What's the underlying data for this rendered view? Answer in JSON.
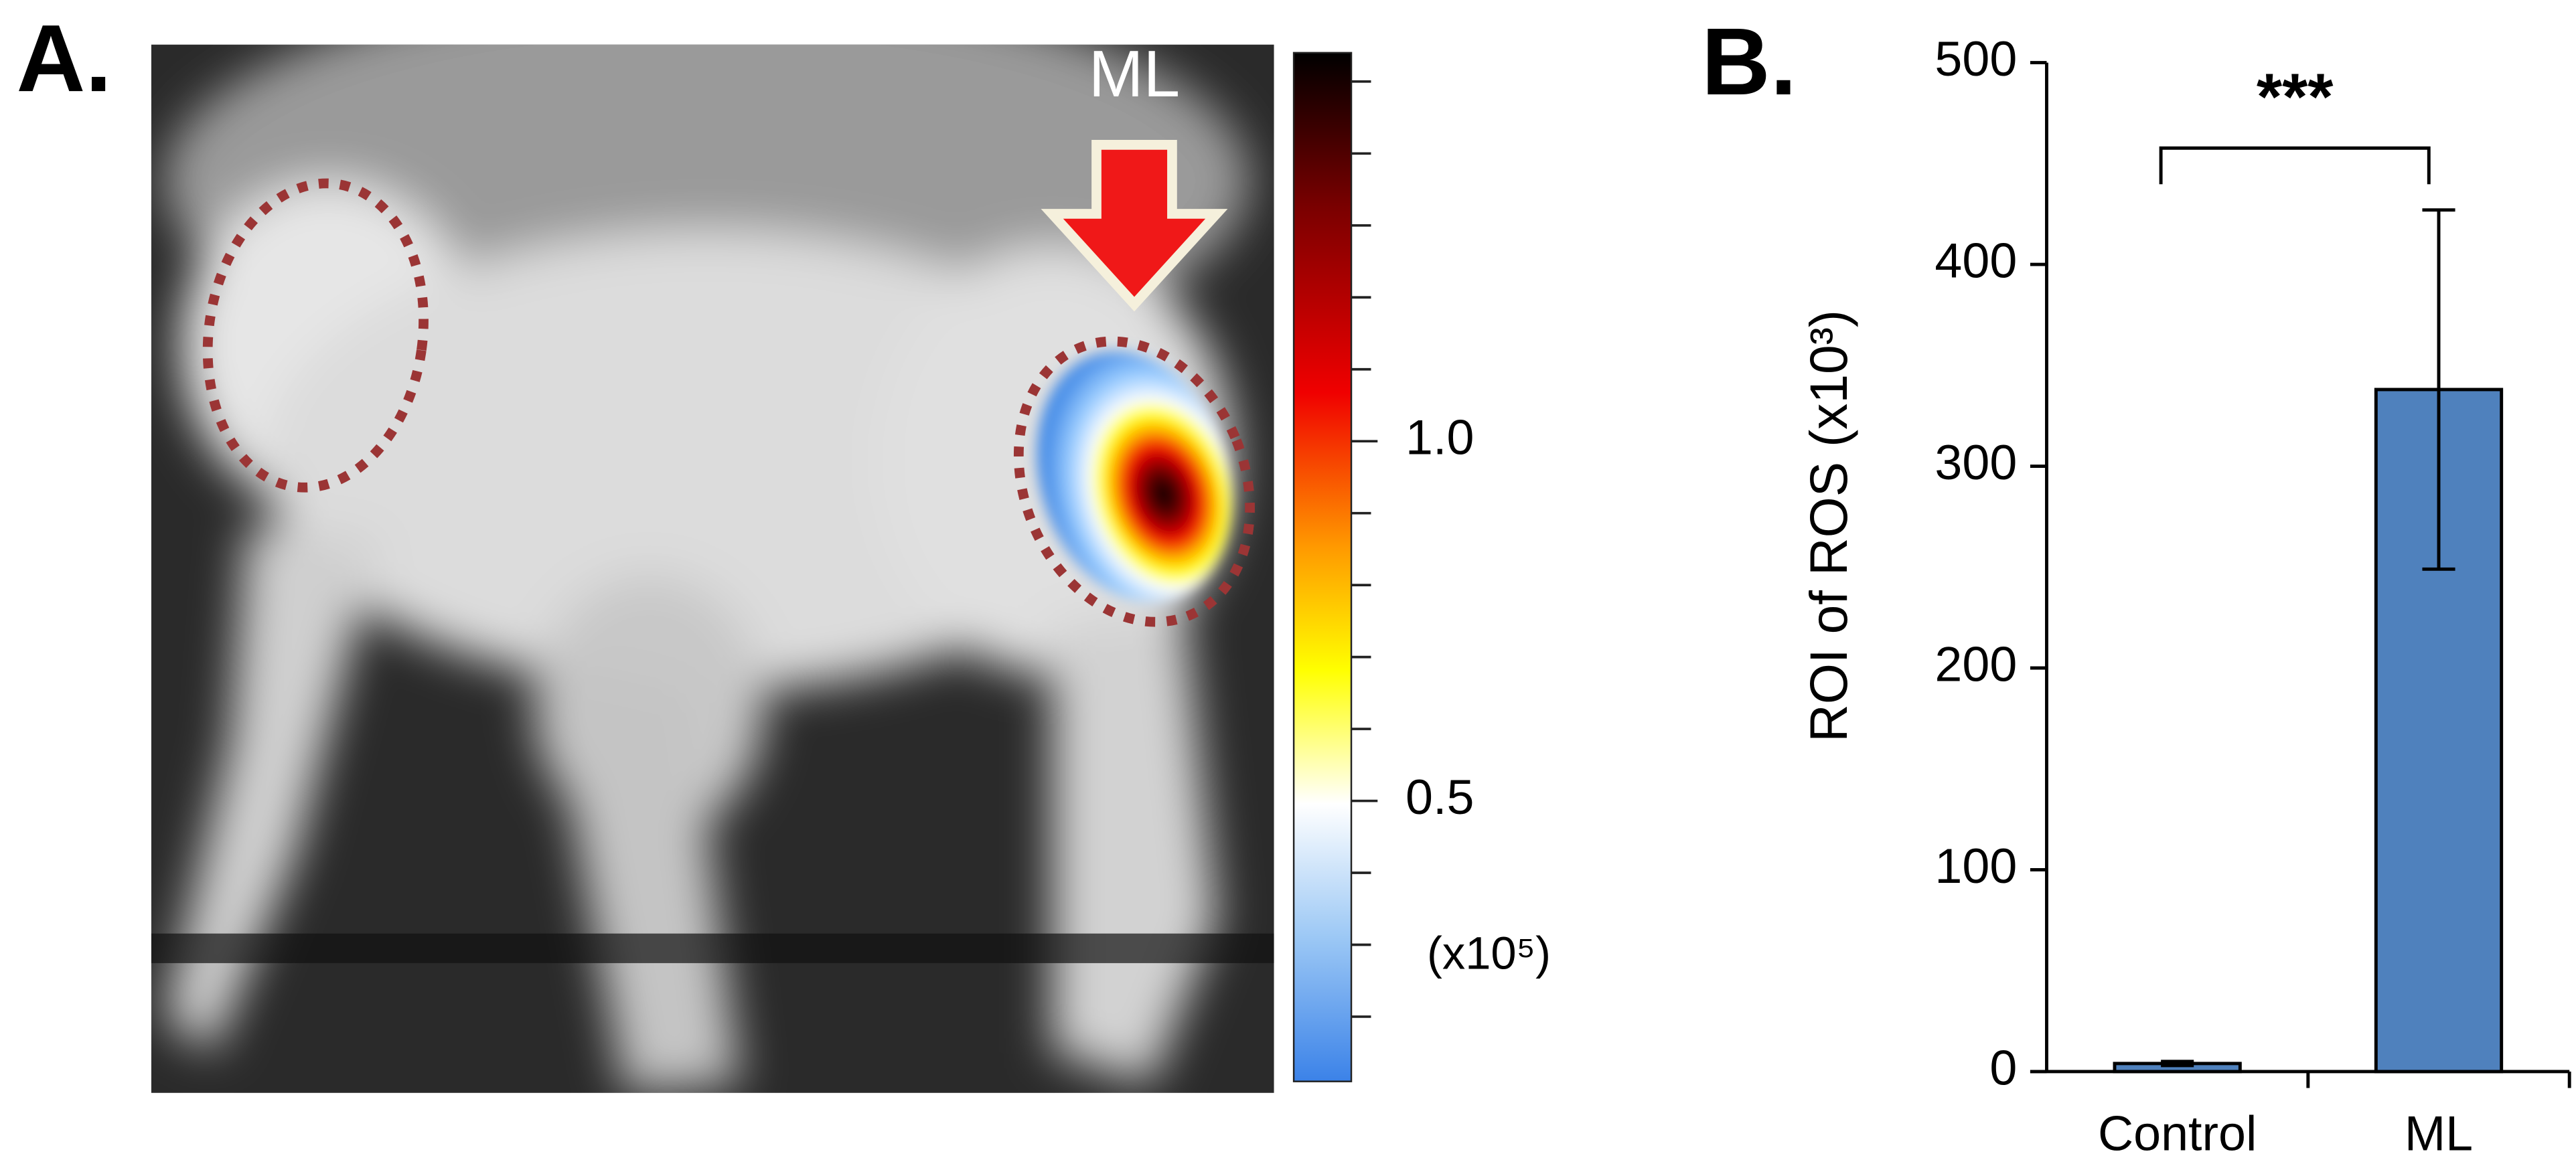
{
  "panels": {
    "a": {
      "label": "A.",
      "arrow_label": "ML",
      "colorbar": {
        "lim": [
          0.11,
          1.54
        ],
        "ticks": [
          {
            "value": 1,
            "label": "1.0"
          },
          0.5
        ],
        "minor_ticks": [
          0.2,
          0.3,
          0.4,
          0.6,
          0.7,
          0.8,
          0.9,
          1.1,
          1.2,
          1.3,
          1.4,
          1.5
        ],
        "unit": "(x10⁵)"
      }
    }
  },
  "chart_data": {
    "type": "bar",
    "panel_label": "B.",
    "ylabel": "ROI of ROS (x10³)",
    "categories": [
      "Control",
      "ML"
    ],
    "values": [
      4,
      338
    ],
    "errors": [
      1,
      89
    ],
    "color": "#4f81bd",
    "ylim": [
      0,
      500
    ],
    "yticks": [
      0,
      100,
      200,
      300,
      400,
      500
    ],
    "annotation": "***"
  }
}
